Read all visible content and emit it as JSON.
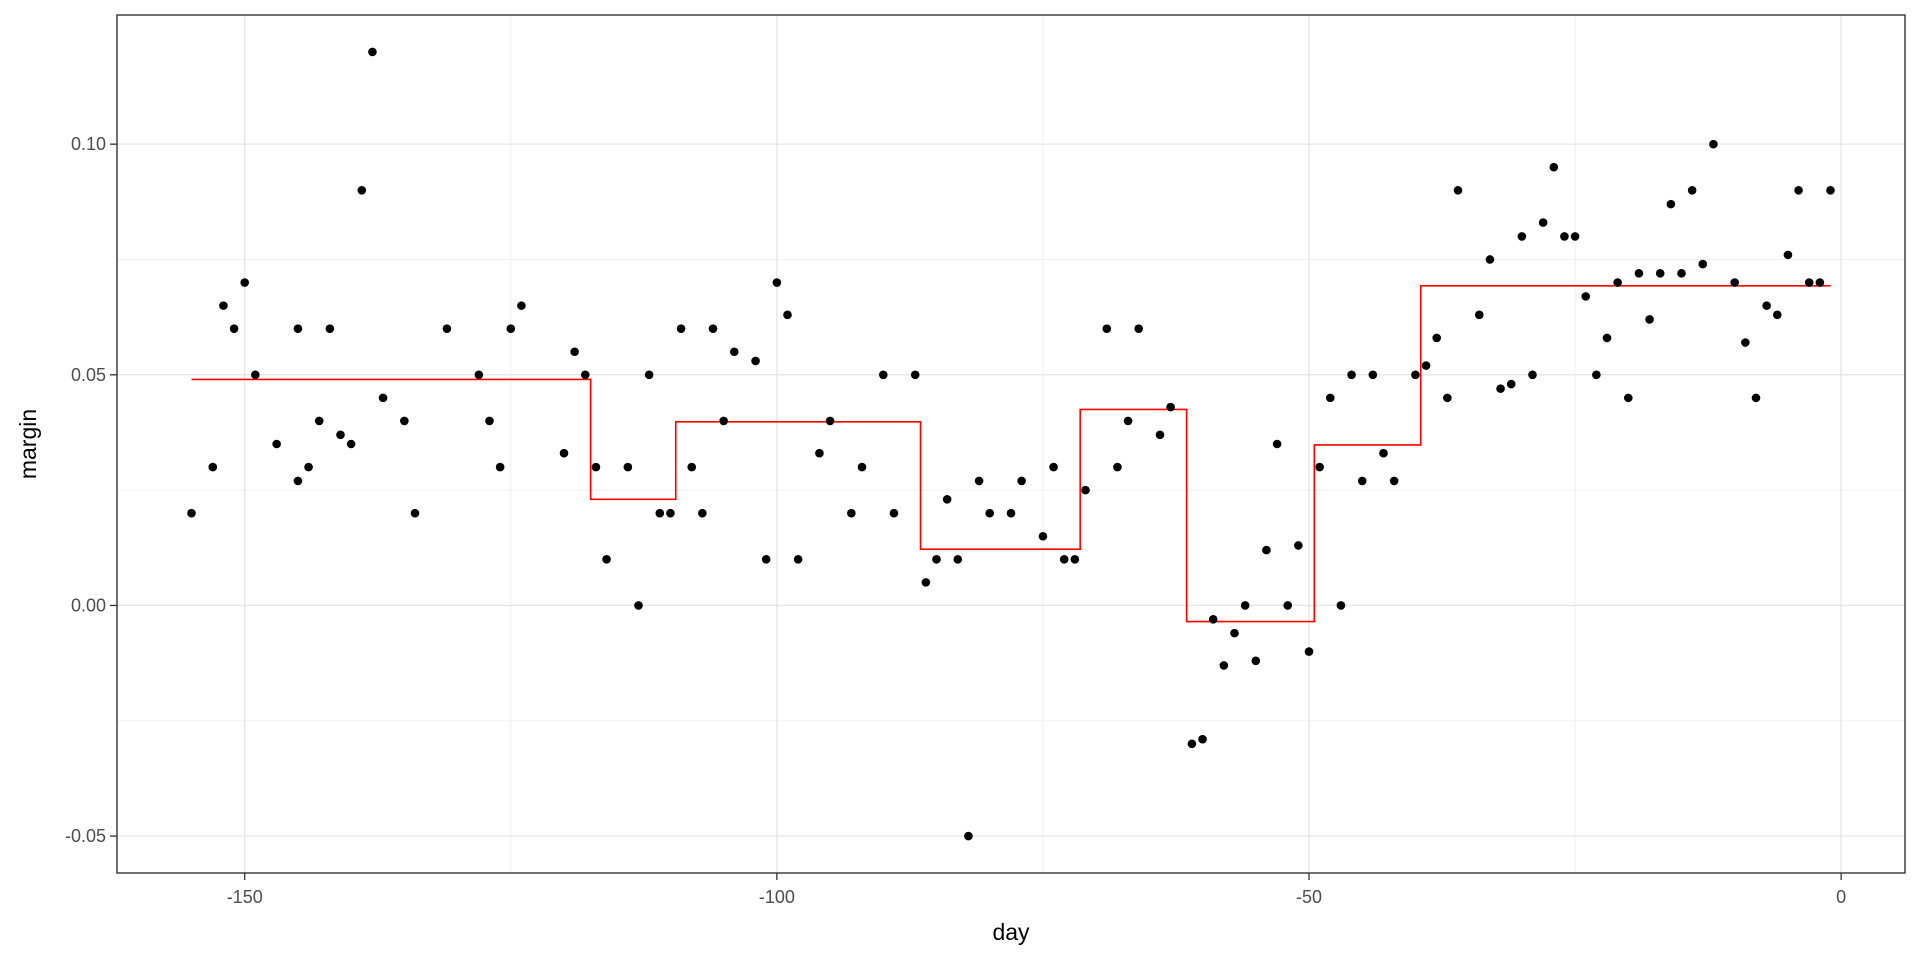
{
  "chart_data": {
    "type": "scatter",
    "xlabel": "day",
    "ylabel": "margin",
    "xlim": [
      -162,
      6
    ],
    "ylim": [
      -0.058,
      0.128
    ],
    "x_ticks": [
      -150,
      -100,
      -50,
      0
    ],
    "x_tick_labels": [
      "-150",
      "-100",
      "-50",
      "0"
    ],
    "x_minor": [
      -125,
      -75,
      -25
    ],
    "y_ticks": [
      -0.05,
      0.0,
      0.05,
      0.1
    ],
    "y_tick_labels": [
      "-0.05",
      "0.00",
      "0.05",
      "0.10"
    ],
    "y_minor": [
      -0.025,
      0.025,
      0.075
    ],
    "grid": true,
    "series": [
      {
        "type": "scatter",
        "color": "#000000",
        "points": [
          [
            -155,
            0.02
          ],
          [
            -153,
            0.03
          ],
          [
            -152,
            0.065
          ],
          [
            -151,
            0.06
          ],
          [
            -150,
            0.07
          ],
          [
            -149,
            0.05
          ],
          [
            -147,
            0.035
          ],
          [
            -145,
            0.06
          ],
          [
            -145,
            0.027
          ],
          [
            -144,
            0.03
          ],
          [
            -143,
            0.04
          ],
          [
            -142,
            0.06
          ],
          [
            -141,
            0.037
          ],
          [
            -140,
            0.035
          ],
          [
            -139,
            0.09
          ],
          [
            -138,
            0.12
          ],
          [
            -137,
            0.045
          ],
          [
            -135,
            0.04
          ],
          [
            -134,
            0.02
          ],
          [
            -131,
            0.06
          ],
          [
            -128,
            0.05
          ],
          [
            -127,
            0.04
          ],
          [
            -126,
            0.03
          ],
          [
            -125,
            0.06
          ],
          [
            -124,
            0.065
          ],
          [
            -120,
            0.033
          ],
          [
            -119,
            0.055
          ],
          [
            -118,
            0.05
          ],
          [
            -117,
            0.03
          ],
          [
            -116,
            0.01
          ],
          [
            -114,
            0.03
          ],
          [
            -113,
            0.0
          ],
          [
            -112,
            0.05
          ],
          [
            -111,
            0.02
          ],
          [
            -110,
            0.02
          ],
          [
            -109,
            0.06
          ],
          [
            -108,
            0.03
          ],
          [
            -107,
            0.02
          ],
          [
            -106,
            0.06
          ],
          [
            -105,
            0.04
          ],
          [
            -104,
            0.055
          ],
          [
            -102,
            0.053
          ],
          [
            -101,
            0.01
          ],
          [
            -100,
            0.07
          ],
          [
            -99,
            0.063
          ],
          [
            -98,
            0.01
          ],
          [
            -96,
            0.033
          ],
          [
            -95,
            0.04
          ],
          [
            -93,
            0.02
          ],
          [
            -92,
            0.03
          ],
          [
            -90,
            0.05
          ],
          [
            -89,
            0.02
          ],
          [
            -87,
            0.05
          ],
          [
            -86,
            0.005
          ],
          [
            -85,
            0.01
          ],
          [
            -84,
            0.023
          ],
          [
            -83,
            0.01
          ],
          [
            -82,
            -0.05
          ],
          [
            -81,
            0.027
          ],
          [
            -80,
            0.02
          ],
          [
            -78,
            0.02
          ],
          [
            -77,
            0.027
          ],
          [
            -75,
            0.015
          ],
          [
            -74,
            0.03
          ],
          [
            -73,
            0.01
          ],
          [
            -72,
            0.01
          ],
          [
            -71,
            0.025
          ],
          [
            -69,
            0.06
          ],
          [
            -68,
            0.03
          ],
          [
            -67,
            0.04
          ],
          [
            -66,
            0.06
          ],
          [
            -64,
            0.037
          ],
          [
            -63,
            0.043
          ],
          [
            -61,
            -0.03
          ],
          [
            -60,
            -0.029
          ],
          [
            -59,
            -0.003
          ],
          [
            -58,
            -0.013
          ],
          [
            -57,
            -0.006
          ],
          [
            -56,
            0.0
          ],
          [
            -55,
            -0.012
          ],
          [
            -54,
            0.012
          ],
          [
            -53,
            0.035
          ],
          [
            -52,
            0.0
          ],
          [
            -51,
            0.013
          ],
          [
            -50,
            -0.01
          ],
          [
            -49,
            0.03
          ],
          [
            -48,
            0.045
          ],
          [
            -47,
            0.0
          ],
          [
            -46,
            0.05
          ],
          [
            -45,
            0.027
          ],
          [
            -44,
            0.05
          ],
          [
            -43,
            0.033
          ],
          [
            -42,
            0.027
          ],
          [
            -40,
            0.05
          ],
          [
            -39,
            0.052
          ],
          [
            -38,
            0.058
          ],
          [
            -37,
            0.045
          ],
          [
            -36,
            0.09
          ],
          [
            -34,
            0.063
          ],
          [
            -33,
            0.075
          ],
          [
            -32,
            0.047
          ],
          [
            -31,
            0.048
          ],
          [
            -30,
            0.08
          ],
          [
            -29,
            0.05
          ],
          [
            -28,
            0.083
          ],
          [
            -27,
            0.095
          ],
          [
            -26,
            0.08
          ],
          [
            -25,
            0.08
          ],
          [
            -24,
            0.067
          ],
          [
            -23,
            0.05
          ],
          [
            -22,
            0.058
          ],
          [
            -21,
            0.07
          ],
          [
            -20,
            0.045
          ],
          [
            -19,
            0.072
          ],
          [
            -18,
            0.062
          ],
          [
            -17,
            0.072
          ],
          [
            -16,
            0.087
          ],
          [
            -15,
            0.072
          ],
          [
            -14,
            0.09
          ],
          [
            -13,
            0.074
          ],
          [
            -12,
            0.1
          ],
          [
            -10,
            0.07
          ],
          [
            -9,
            0.057
          ],
          [
            -8,
            0.045
          ],
          [
            -7,
            0.065
          ],
          [
            -6,
            0.063
          ],
          [
            -5,
            0.076
          ],
          [
            -4,
            0.09
          ],
          [
            -3,
            0.07
          ],
          [
            -2,
            0.07
          ],
          [
            -1,
            0.09
          ]
        ]
      },
      {
        "type": "step",
        "color": "#ff0000",
        "segments": [
          [
            -155,
            -117.5,
            0.049
          ],
          [
            -117.5,
            -109.5,
            0.023
          ],
          [
            -109.5,
            -86.5,
            0.0398
          ],
          [
            -86.5,
            -71.5,
            0.0122
          ],
          [
            -71.5,
            -61.5,
            0.0425
          ],
          [
            -61.5,
            -49.5,
            -0.0035
          ],
          [
            -49.5,
            -39.5,
            0.0348
          ],
          [
            -39.5,
            -1,
            0.0693
          ]
        ]
      }
    ]
  }
}
